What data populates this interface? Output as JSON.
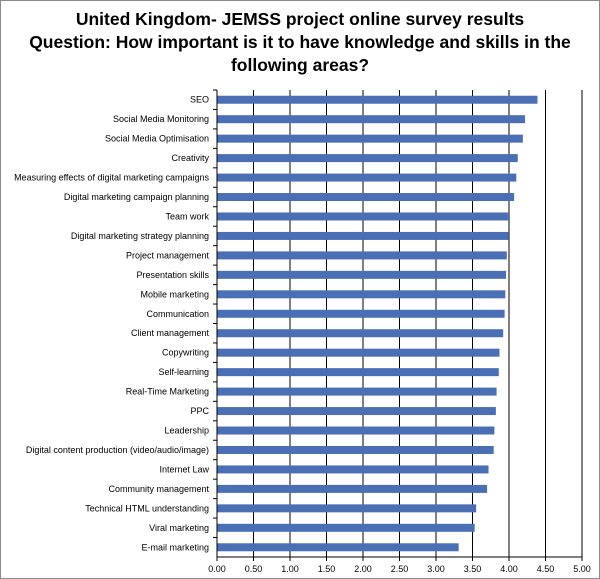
{
  "chart_data": {
    "type": "bar",
    "orientation": "horizontal",
    "title_lines": [
      "United Kingdom- JEMSS project online survey results",
      "Question: How important is it to have knowledge and skills in the",
      "following areas?"
    ],
    "categories": [
      "SEO",
      "Social Media Monitoring",
      "Social Media Optimisation",
      "Creativity",
      "Measuring effects of digital marketing campaigns",
      "Digital marketing campaign planning",
      "Team work",
      "Digital marketing strategy planning",
      "Project management",
      "Presentation skills",
      "Mobile marketing",
      "Communication",
      "Client management",
      "Copywriting",
      "Self-learning",
      "Real-Time Marketing",
      "PPC",
      "Leadership",
      "Digital content production (video/audio/image)",
      "Internet Law",
      "Community management",
      "Technical HTML understanding",
      "Viral marketing",
      "E-mail marketing"
    ],
    "values": [
      4.39,
      4.22,
      4.19,
      4.12,
      4.1,
      4.07,
      4.0,
      3.99,
      3.97,
      3.96,
      3.95,
      3.94,
      3.92,
      3.87,
      3.86,
      3.83,
      3.82,
      3.8,
      3.79,
      3.72,
      3.7,
      3.55,
      3.53,
      3.31
    ],
    "xlim": [
      0,
      5
    ],
    "xticks": [
      "0.00",
      "0.50",
      "1.00",
      "1.50",
      "2.00",
      "2.50",
      "3.00",
      "3.50",
      "4.00",
      "4.50",
      "5.00"
    ],
    "grid": true,
    "bar_color": "#4a6fb5",
    "grid_color": "#000000"
  }
}
